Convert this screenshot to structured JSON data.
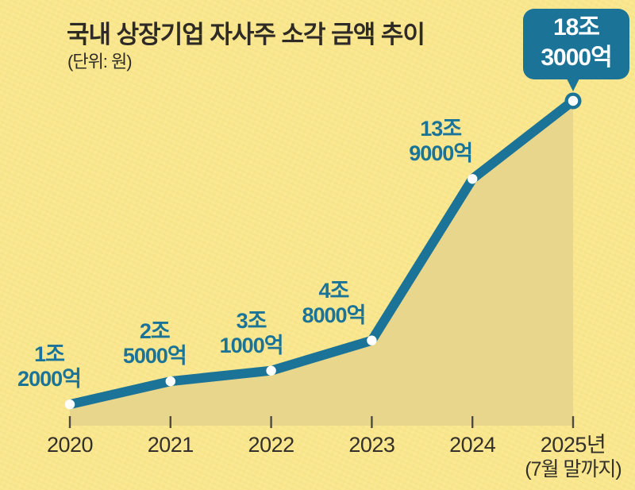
{
  "chart_data": {
    "type": "area",
    "title": "국내 상장기업 자사주 소각 금액 추이",
    "unit_label": "(단위: 원)",
    "categories": [
      "2020",
      "2021",
      "2022",
      "2023",
      "2024",
      "2025년"
    ],
    "x_axis_note": "(7월 말까지)",
    "series": [
      {
        "values_trillion_won": [
          1.2,
          2.5,
          3.1,
          4.8,
          13.9,
          18.3
        ],
        "point_labels": [
          [
            "1조",
            "2000억"
          ],
          [
            "2조",
            "5000억"
          ],
          [
            "3조",
            "1000억"
          ],
          [
            "4조",
            "8000억"
          ],
          [
            "13조",
            "9000억"
          ],
          [
            "18조",
            "3000억"
          ]
        ]
      }
    ],
    "ylim": [
      0,
      19.5
    ],
    "grid": false,
    "legend": false,
    "highlight": {
      "style": "callout",
      "index": 5
    }
  },
  "colors": {
    "background": "#fae78d",
    "area_fill": "#e8d68c",
    "line": "#1b7397",
    "value_label_text": "#1b7397",
    "callout_bg": "#1b7397",
    "callout_text": "#ffffff",
    "title_text": "#2e2a25",
    "axis_text": "#332f2a",
    "tick": "#4e4943",
    "point_fill": "#ffffff"
  }
}
